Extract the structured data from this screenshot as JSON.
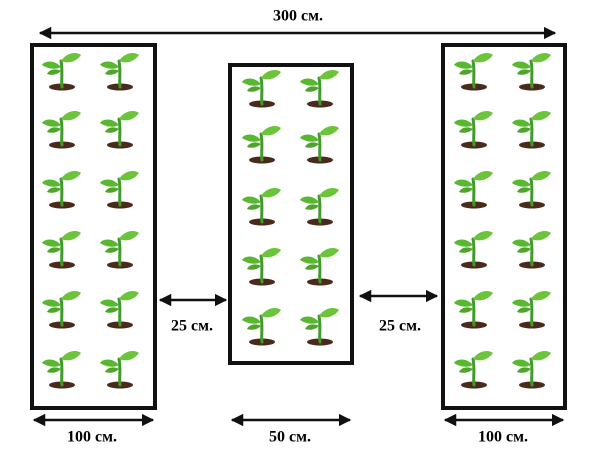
{
  "dimensions": {
    "total_width": "300 см.",
    "left_gap": "25 см.",
    "right_gap": "25 см.",
    "left_bed_width": "100 см.",
    "middle_bed_width": "50 см.",
    "right_bed_width": "100 см."
  }
}
